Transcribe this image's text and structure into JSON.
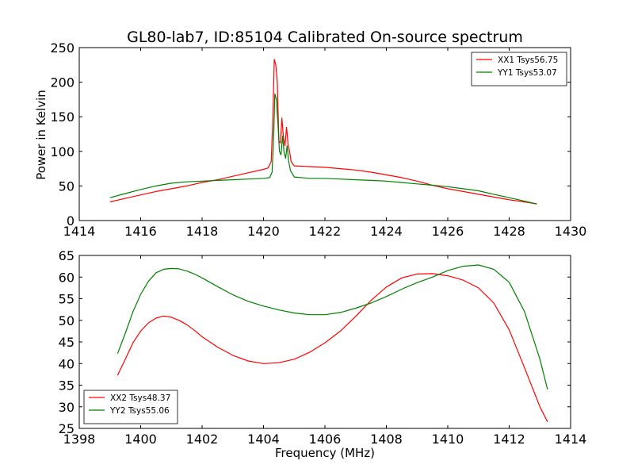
{
  "chart_data": [
    {
      "type": "line",
      "title": "GL80-lab7, ID:85104 Calibrated On-source spectrum",
      "xlabel": "",
      "ylabel": "Power in Kelvin",
      "xlim": [
        1414,
        1430
      ],
      "ylim": [
        0,
        250
      ],
      "xticks": [
        "1414",
        "1416",
        "1418",
        "1420",
        "1422",
        "1424",
        "1426",
        "1428",
        "1430"
      ],
      "yticks": [
        "0",
        "50",
        "100",
        "150",
        "200",
        "250"
      ],
      "grid": false,
      "legend": "top-right",
      "series": [
        {
          "name": "XX1 Tsys56.75",
          "color": "#ff0000",
          "points": [
            [
              1415.0,
              27
            ],
            [
              1415.5,
              32
            ],
            [
              1416.0,
              37
            ],
            [
              1416.5,
              42
            ],
            [
              1417.0,
              46
            ],
            [
              1417.5,
              50
            ],
            [
              1418.0,
              55
            ],
            [
              1418.5,
              59
            ],
            [
              1419.0,
              64
            ],
            [
              1419.5,
              69
            ],
            [
              1420.0,
              74
            ],
            [
              1420.15,
              76
            ],
            [
              1420.25,
              85
            ],
            [
              1420.3,
              140
            ],
            [
              1420.35,
              233
            ],
            [
              1420.4,
              225
            ],
            [
              1420.45,
              200
            ],
            [
              1420.5,
              115
            ],
            [
              1420.55,
              112
            ],
            [
              1420.6,
              148
            ],
            [
              1420.65,
              120
            ],
            [
              1420.7,
              108
            ],
            [
              1420.75,
              135
            ],
            [
              1420.8,
              110
            ],
            [
              1420.85,
              100
            ],
            [
              1420.9,
              85
            ],
            [
              1421.0,
              79
            ],
            [
              1421.5,
              78
            ],
            [
              1422.0,
              77
            ],
            [
              1422.5,
              75
            ],
            [
              1423.0,
              73
            ],
            [
              1423.5,
              70
            ],
            [
              1424.0,
              66
            ],
            [
              1424.5,
              62
            ],
            [
              1425.0,
              57
            ],
            [
              1425.5,
              51
            ],
            [
              1426.0,
              46
            ],
            [
              1426.5,
              42
            ],
            [
              1427.0,
              38
            ],
            [
              1427.5,
              34
            ],
            [
              1428.0,
              30
            ],
            [
              1428.5,
              27
            ],
            [
              1428.9,
              24
            ]
          ]
        },
        {
          "name": "YY1 Tsys53.07",
          "color": "#008000",
          "points": [
            [
              1415.0,
              33
            ],
            [
              1415.5,
              39
            ],
            [
              1416.0,
              45
            ],
            [
              1416.5,
              50
            ],
            [
              1417.0,
              54
            ],
            [
              1417.5,
              56
            ],
            [
              1418.0,
              57
            ],
            [
              1418.5,
              58
            ],
            [
              1419.0,
              59
            ],
            [
              1419.5,
              60
            ],
            [
              1420.0,
              61
            ],
            [
              1420.2,
              62
            ],
            [
              1420.28,
              70
            ],
            [
              1420.33,
              120
            ],
            [
              1420.37,
              183
            ],
            [
              1420.42,
              175
            ],
            [
              1420.47,
              140
            ],
            [
              1420.52,
              100
            ],
            [
              1420.57,
              95
            ],
            [
              1420.62,
              122
            ],
            [
              1420.67,
              98
            ],
            [
              1420.72,
              90
            ],
            [
              1420.77,
              108
            ],
            [
              1420.82,
              85
            ],
            [
              1420.88,
              72
            ],
            [
              1421.0,
              63
            ],
            [
              1421.5,
              61
            ],
            [
              1422.0,
              61
            ],
            [
              1422.5,
              60
            ],
            [
              1423.0,
              59
            ],
            [
              1423.5,
              58
            ],
            [
              1424.0,
              57
            ],
            [
              1424.5,
              55
            ],
            [
              1425.0,
              53
            ],
            [
              1425.5,
              51
            ],
            [
              1426.0,
              49
            ],
            [
              1426.5,
              46
            ],
            [
              1427.0,
              43
            ],
            [
              1427.5,
              38
            ],
            [
              1428.0,
              33
            ],
            [
              1428.5,
              28
            ],
            [
              1428.9,
              24
            ]
          ]
        }
      ]
    },
    {
      "type": "line",
      "title": "",
      "xlabel": "Frequency (MHz)",
      "ylabel": "",
      "xlim": [
        1398,
        1414
      ],
      "ylim": [
        25,
        65
      ],
      "xticks": [
        "1398",
        "1400",
        "1402",
        "1404",
        "1406",
        "1408",
        "1410",
        "1412",
        "1414"
      ],
      "yticks": [
        "25",
        "30",
        "35",
        "40",
        "45",
        "50",
        "55",
        "60",
        "65"
      ],
      "grid": false,
      "legend": "bottom-left",
      "series": [
        {
          "name": "XX2 Tsys48.37",
          "color": "#ff0000",
          "points": [
            [
              1399.25,
              37.3
            ],
            [
              1399.5,
              41.0
            ],
            [
              1399.75,
              44.8
            ],
            [
              1400.0,
              47.5
            ],
            [
              1400.25,
              49.4
            ],
            [
              1400.5,
              50.5
            ],
            [
              1400.75,
              51.0
            ],
            [
              1401.0,
              50.7
            ],
            [
              1401.25,
              50.0
            ],
            [
              1401.5,
              49.0
            ],
            [
              1401.75,
              47.7
            ],
            [
              1402.0,
              46.2
            ],
            [
              1402.5,
              43.8
            ],
            [
              1403.0,
              41.9
            ],
            [
              1403.5,
              40.6
            ],
            [
              1404.0,
              40.0
            ],
            [
              1404.5,
              40.2
            ],
            [
              1405.0,
              41.0
            ],
            [
              1405.5,
              42.6
            ],
            [
              1406.0,
              44.8
            ],
            [
              1406.5,
              47.5
            ],
            [
              1407.0,
              50.9
            ],
            [
              1407.5,
              54.6
            ],
            [
              1408.0,
              57.7
            ],
            [
              1408.5,
              59.8
            ],
            [
              1409.0,
              60.7
            ],
            [
              1409.5,
              60.8
            ],
            [
              1410.0,
              60.3
            ],
            [
              1410.5,
              59.3
            ],
            [
              1411.0,
              57.5
            ],
            [
              1411.5,
              54.0
            ],
            [
              1412.0,
              47.8
            ],
            [
              1412.5,
              39.0
            ],
            [
              1413.0,
              30.0
            ],
            [
              1413.25,
              26.5
            ]
          ]
        },
        {
          "name": "YY2 Tsys55.06",
          "color": "#008000",
          "points": [
            [
              1399.25,
              42.3
            ],
            [
              1399.5,
              47.0
            ],
            [
              1399.75,
              52.0
            ],
            [
              1400.0,
              56.0
            ],
            [
              1400.25,
              59.0
            ],
            [
              1400.5,
              61.0
            ],
            [
              1400.75,
              61.8
            ],
            [
              1401.0,
              62.0
            ],
            [
              1401.25,
              61.9
            ],
            [
              1401.5,
              61.4
            ],
            [
              1401.75,
              60.7
            ],
            [
              1402.0,
              59.8
            ],
            [
              1402.5,
              57.8
            ],
            [
              1403.0,
              55.9
            ],
            [
              1403.5,
              54.4
            ],
            [
              1404.0,
              53.3
            ],
            [
              1404.5,
              52.4
            ],
            [
              1405.0,
              51.7
            ],
            [
              1405.5,
              51.3
            ],
            [
              1406.0,
              51.3
            ],
            [
              1406.5,
              51.8
            ],
            [
              1407.0,
              52.8
            ],
            [
              1407.5,
              54.0
            ],
            [
              1408.0,
              55.5
            ],
            [
              1408.5,
              57.2
            ],
            [
              1409.0,
              58.7
            ],
            [
              1409.5,
              60.0
            ],
            [
              1410.0,
              61.5
            ],
            [
              1410.5,
              62.5
            ],
            [
              1411.0,
              62.8
            ],
            [
              1411.5,
              61.8
            ],
            [
              1412.0,
              58.8
            ],
            [
              1412.5,
              52.0
            ],
            [
              1413.0,
              41.0
            ],
            [
              1413.25,
              34.0
            ]
          ]
        }
      ]
    }
  ]
}
